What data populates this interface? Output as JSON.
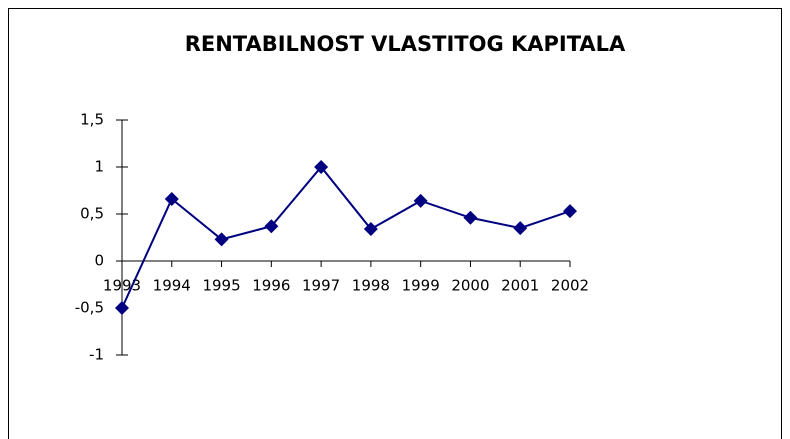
{
  "chart_data": {
    "type": "line",
    "title": "RENTABILNOST VLASTITOG KAPITALA",
    "categories": [
      "1993",
      "1994",
      "1995",
      "1996",
      "1997",
      "1998",
      "1999",
      "2000",
      "2001",
      "2002"
    ],
    "values": [
      -0.5,
      0.66,
      0.23,
      0.37,
      1.0,
      0.34,
      0.64,
      0.46,
      0.35,
      0.53
    ],
    "color": "#000080",
    "ylim": [
      -1,
      1.5
    ],
    "yticks": [
      {
        "value": 1.5,
        "label": "1,5"
      },
      1,
      {
        "value": 0.5,
        "label": "0,5"
      },
      0,
      {
        "value": -0.5,
        "label": "-0,5"
      },
      -1
    ],
    "grid": false
  }
}
